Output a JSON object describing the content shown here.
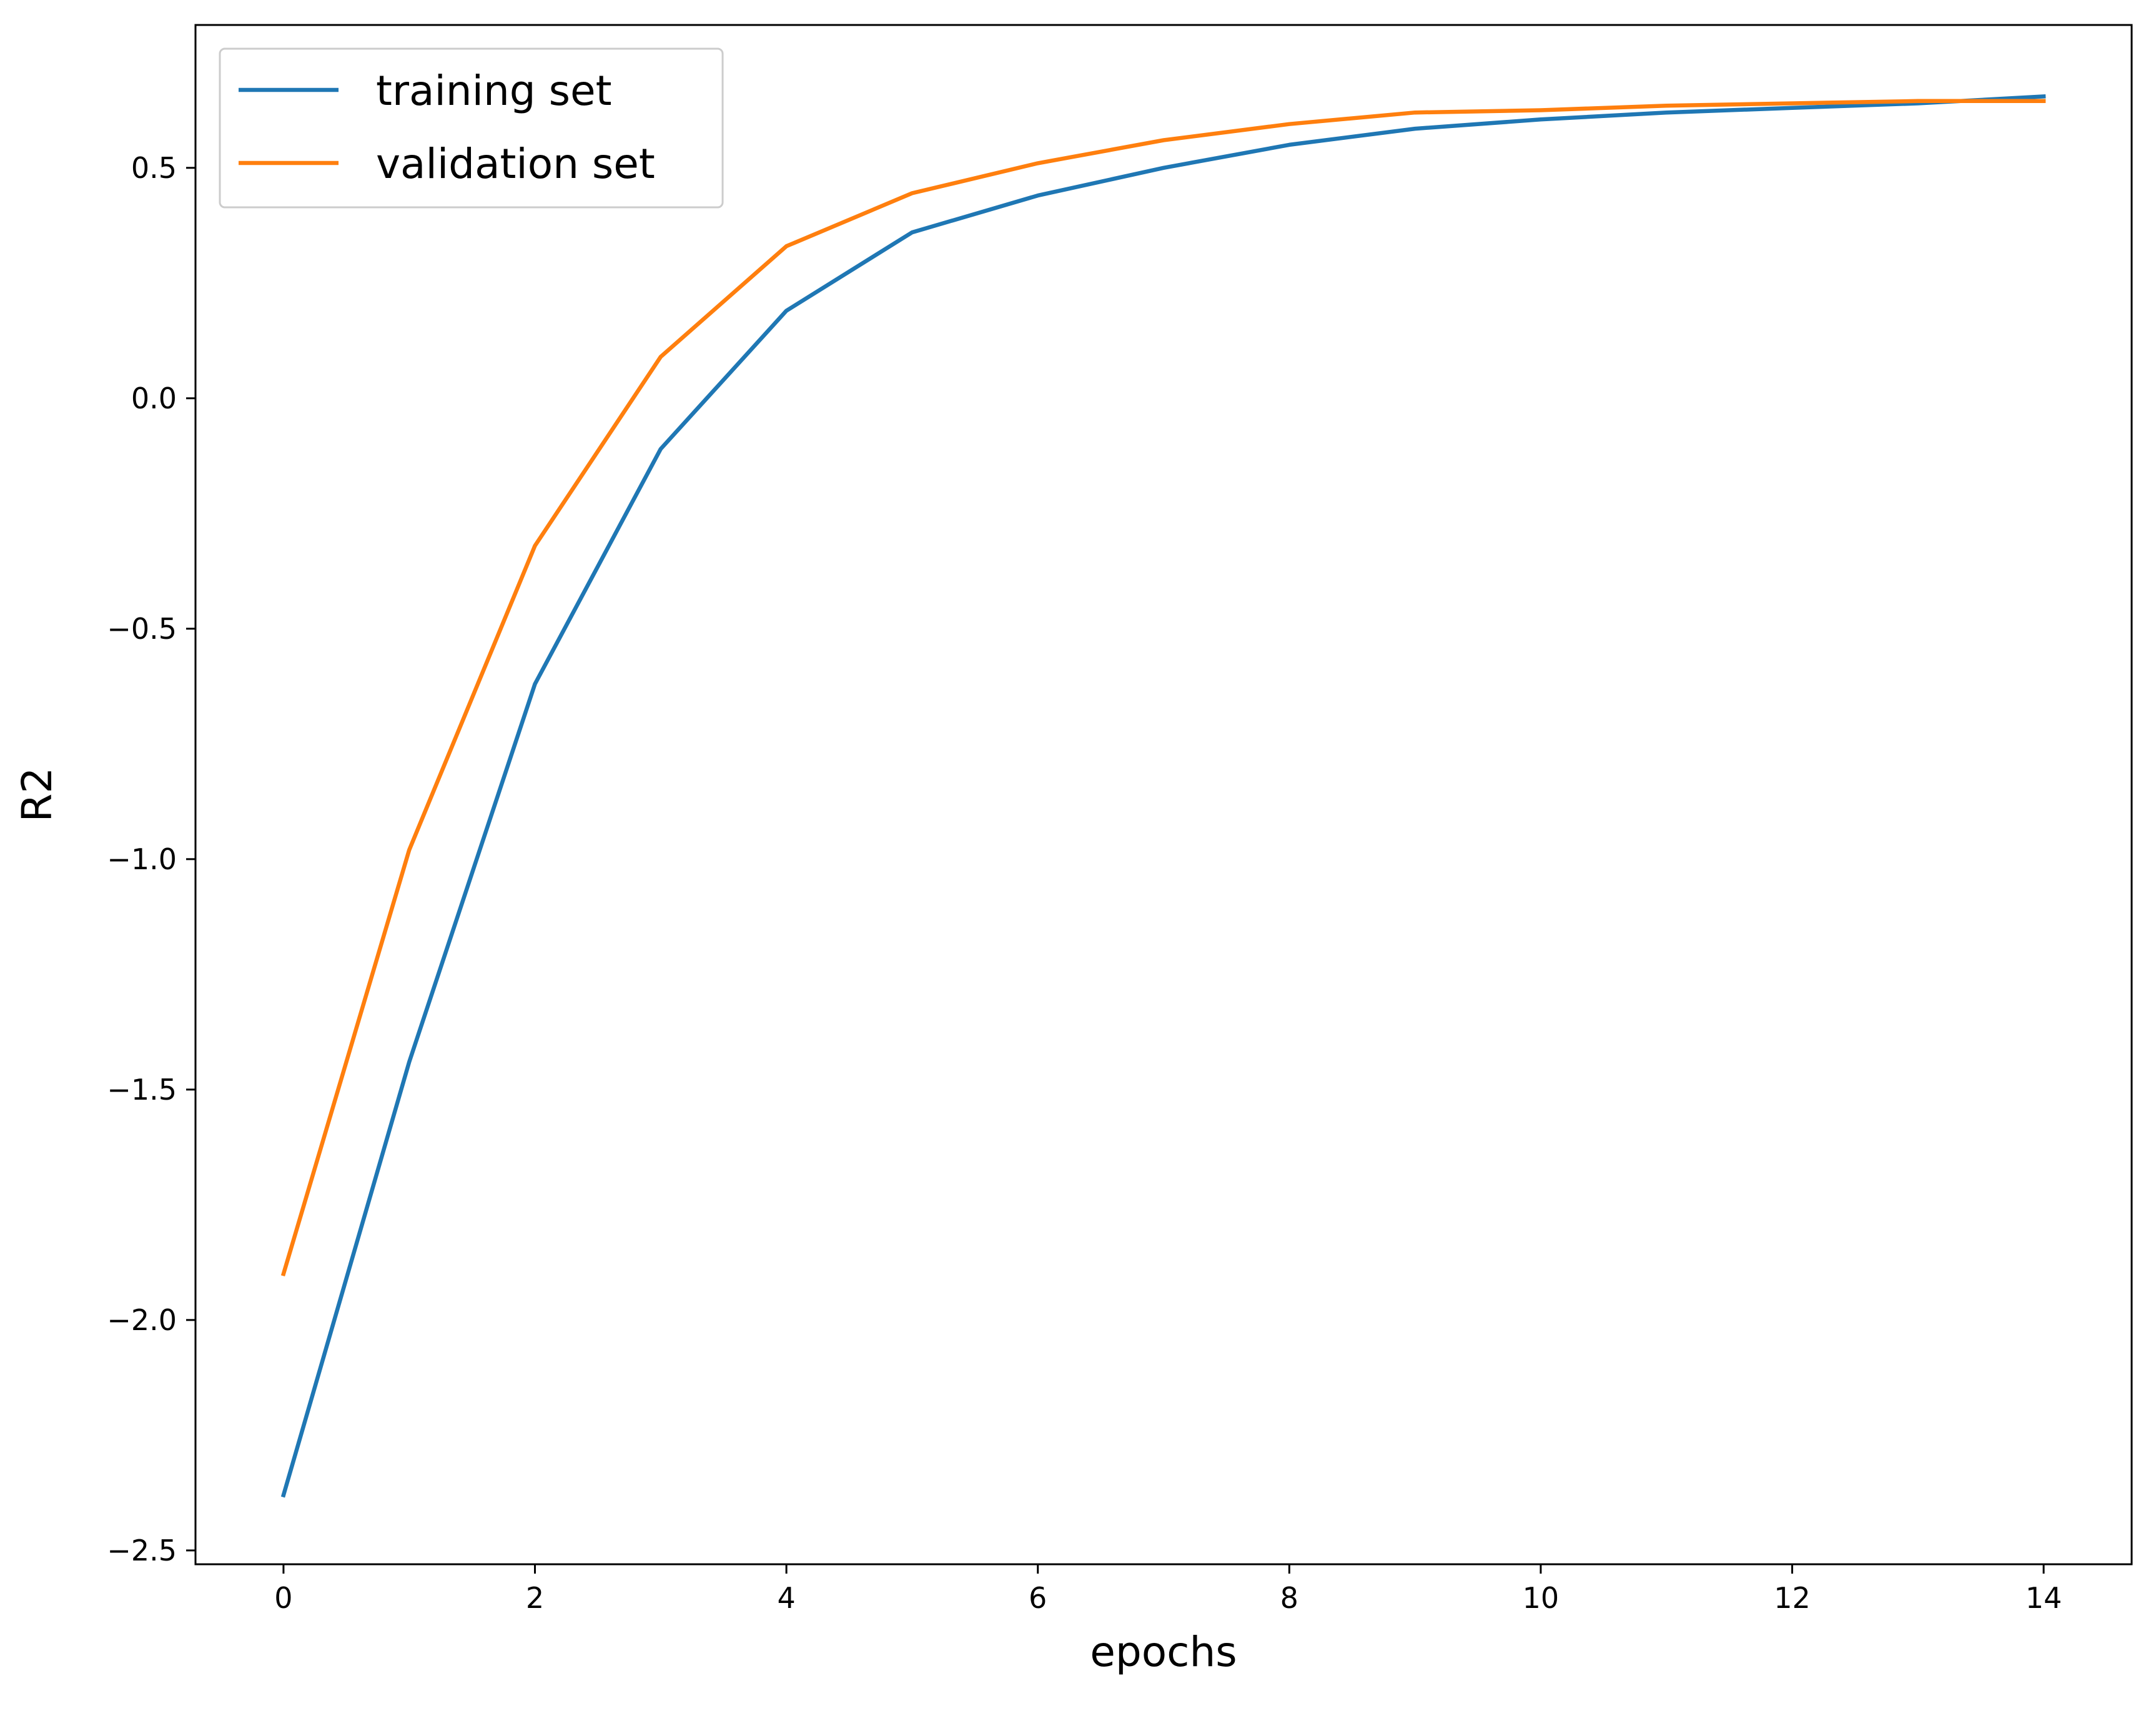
{
  "chart_data": {
    "type": "line",
    "title": "",
    "xlabel": "epochs",
    "ylabel": "R2",
    "xlim": [
      -0.7,
      14.7
    ],
    "ylim": [
      -2.53,
      0.81
    ],
    "xticks": [
      0,
      2,
      4,
      6,
      8,
      10,
      12,
      14
    ],
    "xtick_labels": [
      "0",
      "2",
      "4",
      "6",
      "8",
      "10",
      "12",
      "14"
    ],
    "yticks": [
      -2.5,
      -2.0,
      -1.5,
      -1.0,
      -0.5,
      0.0,
      0.5
    ],
    "ytick_labels": [
      "−2.5",
      "−2.0",
      "−1.5",
      "−1.0",
      "−0.5",
      "0.0",
      "0.5"
    ],
    "grid": false,
    "legend_position": "top-left",
    "x": [
      0,
      1,
      2,
      3,
      4,
      5,
      6,
      7,
      8,
      9,
      10,
      11,
      12,
      13,
      14
    ],
    "series": [
      {
        "name": "training set",
        "color": "#1f77b4",
        "values": [
          -2.38,
          -1.44,
          -0.62,
          -0.11,
          0.19,
          0.36,
          0.44,
          0.5,
          0.55,
          0.585,
          0.605,
          0.62,
          0.63,
          0.64,
          0.655
        ]
      },
      {
        "name": "validation set",
        "color": "#ff7f0e",
        "values": [
          -1.9,
          -0.98,
          -0.32,
          0.09,
          0.33,
          0.445,
          0.51,
          0.56,
          0.595,
          0.62,
          0.625,
          0.635,
          0.64,
          0.645,
          0.645
        ]
      }
    ]
  }
}
